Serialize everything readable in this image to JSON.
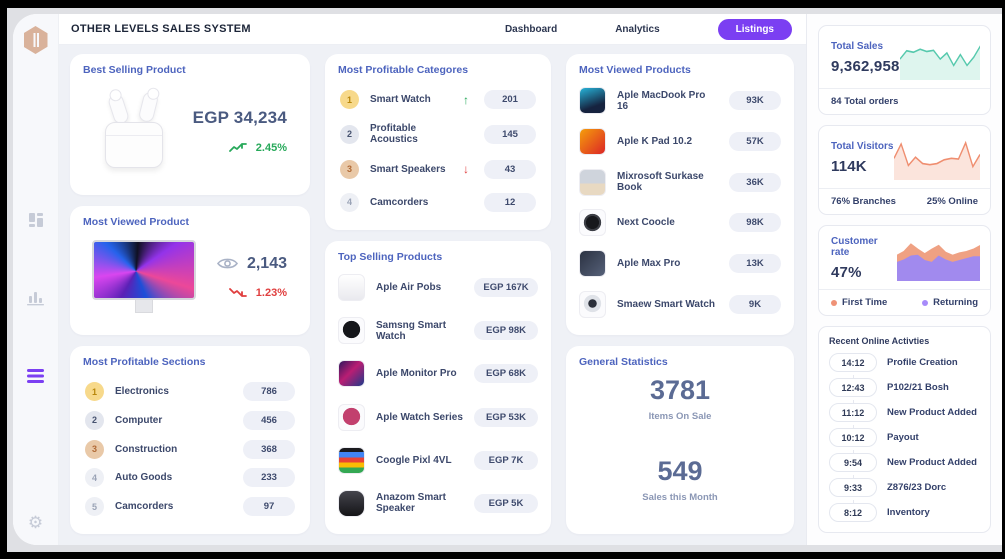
{
  "window": {
    "title": "OTHER LEVELS SALES SYSTEM"
  },
  "nav": {
    "dashboard": "Dashboard",
    "analytics": "Analytics",
    "listings": "Listings"
  },
  "sidebar": {
    "icons": [
      "dashboard-icon",
      "bar-chart-icon",
      "menu-icon",
      "gear-icon"
    ]
  },
  "colors": {
    "accent_purple": "#7b3ff2",
    "title_blue": "#4d64be",
    "positive_green": "#27a95a",
    "negative_red": "#e03e3e",
    "spark_mint": "#56c9ad",
    "spark_salmon": "#ef8e70",
    "spark_purple": "#a18aee",
    "logo_tan": "#d9b29b"
  },
  "cards": {
    "best_selling": {
      "title": "Best Selling Product",
      "price": "EGP 34,234",
      "trend": "2.45%"
    },
    "most_viewed": {
      "title": "Most Viewed Product",
      "views": "2,143",
      "trend": "1.23%"
    },
    "profitable_sections": {
      "title": "Most Profitable Sections",
      "items": [
        {
          "rank": "1",
          "label": "Electronics",
          "value": "786"
        },
        {
          "rank": "2",
          "label": "Computer",
          "value": "456"
        },
        {
          "rank": "3",
          "label": "Construction",
          "value": "368"
        },
        {
          "rank": "4",
          "label": "Auto Goods",
          "value": "233"
        },
        {
          "rank": "5",
          "label": "Camcorders",
          "value": "97"
        }
      ]
    },
    "profitable_categories": {
      "title": "Most Profitable Categores",
      "items": [
        {
          "rank": "1",
          "label": "Smart Watch",
          "value": "201",
          "arrow": "up",
          "arrow_glyph": "↑"
        },
        {
          "rank": "2",
          "label": "Profitable Acoustics",
          "value": "145",
          "arrow": "none",
          "arrow_glyph": ""
        },
        {
          "rank": "3",
          "label": "Smart Speakers",
          "value": "43",
          "arrow": "down",
          "arrow_glyph": "↓"
        },
        {
          "rank": "4",
          "label": "Camcorders",
          "value": "12",
          "arrow": "none",
          "arrow_glyph": ""
        }
      ]
    },
    "top_selling": {
      "title": "Top Selling Products",
      "items": [
        {
          "label": "Aple Air Pobs",
          "value": "EGP 167K",
          "image": "airpods"
        },
        {
          "label": "Samsng Smart Watch",
          "value": "EGP 98K",
          "image": "watch-black"
        },
        {
          "label": "Aple Monitor Pro",
          "value": "EGP 68K",
          "image": "monitor"
        },
        {
          "label": "Aple Watch Series",
          "value": "EGP 53K",
          "image": "watch-red"
        },
        {
          "label": "Coogle Pixl 4VL",
          "value": "EGP 7K",
          "image": "phone"
        },
        {
          "label": "Anazom Smart Speaker",
          "value": "EGP 5K",
          "image": "speaker"
        }
      ]
    },
    "most_viewed_products": {
      "title": "Most Viewed Products",
      "items": [
        {
          "label": "Aple MacDook Pro 16",
          "value": "93K",
          "image": "laptop-dark"
        },
        {
          "label": "Aple K Pad 10.2",
          "value": "57K",
          "image": "tablet"
        },
        {
          "label": "Mixrosoft Surkase Book",
          "value": "36K",
          "image": "laptop-light"
        },
        {
          "label": "Next Coocle",
          "value": "98K",
          "image": "thermostat"
        },
        {
          "label": "Aple Max Pro",
          "value": "13K",
          "image": "monitor-dark"
        },
        {
          "label": "Smaew Smart Watch",
          "value": "9K",
          "image": "watch-white"
        }
      ]
    },
    "general_stats": {
      "title": "General Statistics",
      "stats": [
        {
          "value": "3781",
          "label": "Items On Sale"
        },
        {
          "value": "549",
          "label": "Sales this Month"
        }
      ]
    }
  },
  "right_panel": {
    "total_sales": {
      "title": "Total Sales",
      "value": "9,362,958",
      "footer": "84 Total orders"
    },
    "total_visitors": {
      "title": "Total Visitors",
      "value": "114K",
      "footer_left": "76%  Branches",
      "footer_right": "25%  Online"
    },
    "customer_rate": {
      "title": "Customer rate",
      "value": "47%",
      "legend": [
        {
          "label": "First Time",
          "color": "#ef9277"
        },
        {
          "label": "Returning",
          "color": "#a78bfa"
        }
      ]
    },
    "activities": {
      "title": "Recent Online Activties",
      "items": [
        {
          "time": "14:12",
          "label": "Profile Creation"
        },
        {
          "time": "12:43",
          "label": "P102/21 Bosh"
        },
        {
          "time": "11:12",
          "label": "New Product Added"
        },
        {
          "time": "10:12",
          "label": "Payout"
        },
        {
          "time": "9:54",
          "label": "New Product Added"
        },
        {
          "time": "9:33",
          "label": "Z876/23 Dorc"
        },
        {
          "time": "8:12",
          "label": "Inventory"
        }
      ]
    }
  },
  "chart_data": [
    {
      "id": "total_sales_spark",
      "type": "area",
      "title": "Total Sales trend",
      "axes": false,
      "grid": false,
      "series": [
        {
          "name": "Total Sales",
          "color": "#56c9ad",
          "fill": "#def5ee",
          "values": [
            0.5,
            0.72,
            0.68,
            0.76,
            0.7,
            0.73,
            0.5,
            0.66,
            0.33,
            0.62,
            0.33,
            0.55,
            0.85
          ]
        }
      ]
    },
    {
      "id": "total_visitors_spark",
      "type": "area",
      "title": "Total Visitors trend",
      "axes": false,
      "grid": false,
      "series": [
        {
          "name": "Total Visitors",
          "color": "#ef8e70",
          "fill": "#fbe4dc",
          "values": [
            0.52,
            0.9,
            0.33,
            0.55,
            0.38,
            0.35,
            0.38,
            0.48,
            0.52,
            0.5,
            0.93,
            0.3,
            0.62
          ]
        }
      ]
    },
    {
      "id": "customer_rate_spark",
      "type": "stacked-area",
      "title": "Customer rate: First Time vs Returning",
      "axes": false,
      "grid": false,
      "series": [
        {
          "name": "First Time",
          "color": "#efa183",
          "fill": "#efa183",
          "values": [
            0.62,
            0.72,
            0.92,
            0.78,
            0.66,
            0.78,
            0.88,
            0.7,
            0.62,
            0.68,
            0.72,
            0.78,
            0.88
          ]
        },
        {
          "name": "Returning",
          "color": "#a18aee",
          "fill": "#a18aee",
          "values": [
            0.45,
            0.52,
            0.62,
            0.64,
            0.5,
            0.45,
            0.62,
            0.52,
            0.45,
            0.5,
            0.55,
            0.6,
            0.6
          ]
        }
      ]
    }
  ]
}
